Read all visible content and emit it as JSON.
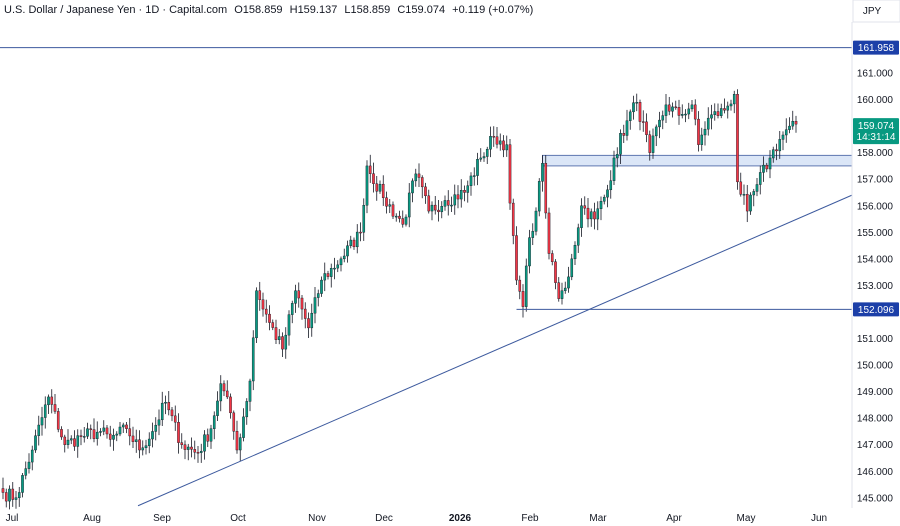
{
  "header": {
    "title": "U.S. Dollar / Japanese Yen · 1D · Capital.com",
    "open": "O158.859",
    "high": "H159.137",
    "low": "L158.859",
    "close": "C159.074",
    "change": "+0.119 (+0.07%)"
  },
  "currency_label": "JPY",
  "price_badge": {
    "value": "159.074",
    "countdown": "14:31:14"
  },
  "levels": [
    {
      "label": "161.958",
      "value": 161.958
    },
    {
      "label": "152.096",
      "value": 152.096
    }
  ],
  "colors": {
    "up": "#089981",
    "down": "#f23645",
    "line": "#3d5a9e",
    "badge": "#1c3fa8",
    "zone": "#dbe6f7"
  },
  "chart_data": {
    "type": "candlestick",
    "ylim": [
      144.7,
      162.5
    ],
    "y_ticks": [
      "161.000",
      "160.000",
      "159.000",
      "158.000",
      "157.000",
      "156.000",
      "155.000",
      "154.000",
      "153.000",
      "152.000",
      "151.000",
      "150.000",
      "149.000",
      "148.000",
      "147.000",
      "146.000",
      "145.000"
    ],
    "x_ticks": [
      {
        "label": "Jul",
        "bold": false
      },
      {
        "label": "Aug",
        "bold": false
      },
      {
        "label": "Sep",
        "bold": false
      },
      {
        "label": "Oct",
        "bold": false
      },
      {
        "label": "Nov",
        "bold": false
      },
      {
        "label": "Dec",
        "bold": false
      },
      {
        "label": "2026",
        "bold": true
      },
      {
        "label": "Feb",
        "bold": false
      },
      {
        "label": "Mar",
        "bold": false
      },
      {
        "label": "Apr",
        "bold": false
      },
      {
        "label": "May",
        "bold": false
      },
      {
        "label": "Jun",
        "bold": false
      }
    ],
    "support_zone": [
      157.5,
      157.9
    ],
    "trendline": [
      [
        144.7,
        156.4
      ]
    ],
    "anchors": [
      [
        0,
        145.2
      ],
      [
        4,
        145.0
      ],
      [
        9,
        146.8
      ],
      [
        14,
        148.8
      ],
      [
        19,
        147.0
      ],
      [
        24,
        147.3
      ],
      [
        30,
        147.5
      ],
      [
        33,
        147.2
      ],
      [
        38,
        147.6
      ],
      [
        42,
        146.8
      ],
      [
        46,
        147.5
      ],
      [
        50,
        148.6
      ],
      [
        55,
        147.0
      ],
      [
        60,
        146.7
      ],
      [
        64,
        147.6
      ],
      [
        67,
        149.3
      ],
      [
        70,
        148.2
      ],
      [
        72,
        146.8
      ],
      [
        76,
        149.4
      ],
      [
        78,
        152.8
      ],
      [
        82,
        151.6
      ],
      [
        86,
        150.6
      ],
      [
        90,
        152.8
      ],
      [
        94,
        151.4
      ],
      [
        98,
        153.2
      ],
      [
        104,
        154.0
      ],
      [
        110,
        155.0
      ],
      [
        112,
        157.5
      ],
      [
        117,
        156.3
      ],
      [
        123,
        155.3
      ],
      [
        127,
        157.2
      ],
      [
        131,
        155.8
      ],
      [
        136,
        156.2
      ],
      [
        142,
        156.5
      ],
      [
        147,
        157.8
      ],
      [
        151,
        158.6
      ],
      [
        155,
        158.3
      ],
      [
        156,
        156.1
      ],
      [
        158,
        153.2
      ],
      [
        160,
        152.2
      ],
      [
        162,
        154.8
      ],
      [
        164,
        155.8
      ],
      [
        166,
        157.6
      ],
      [
        168,
        154.2
      ],
      [
        171,
        152.5
      ],
      [
        173,
        152.9
      ],
      [
        175,
        154.0
      ],
      [
        178,
        156.0
      ],
      [
        182,
        155.5
      ],
      [
        186,
        156.6
      ],
      [
        188,
        157.8
      ],
      [
        192,
        159.2
      ],
      [
        195,
        159.9
      ],
      [
        199,
        158.0
      ],
      [
        204,
        159.8
      ],
      [
        208,
        159.4
      ],
      [
        212,
        159.8
      ],
      [
        214,
        158.3
      ],
      [
        217,
        159.3
      ],
      [
        222,
        159.6
      ],
      [
        225,
        160.2
      ],
      [
        226,
        156.9
      ],
      [
        229,
        155.8
      ],
      [
        232,
        156.8
      ],
      [
        236,
        157.8
      ],
      [
        239,
        158.5
      ],
      [
        242,
        159.0
      ],
      [
        244,
        159.07
      ]
    ],
    "last_close": 159.074
  }
}
